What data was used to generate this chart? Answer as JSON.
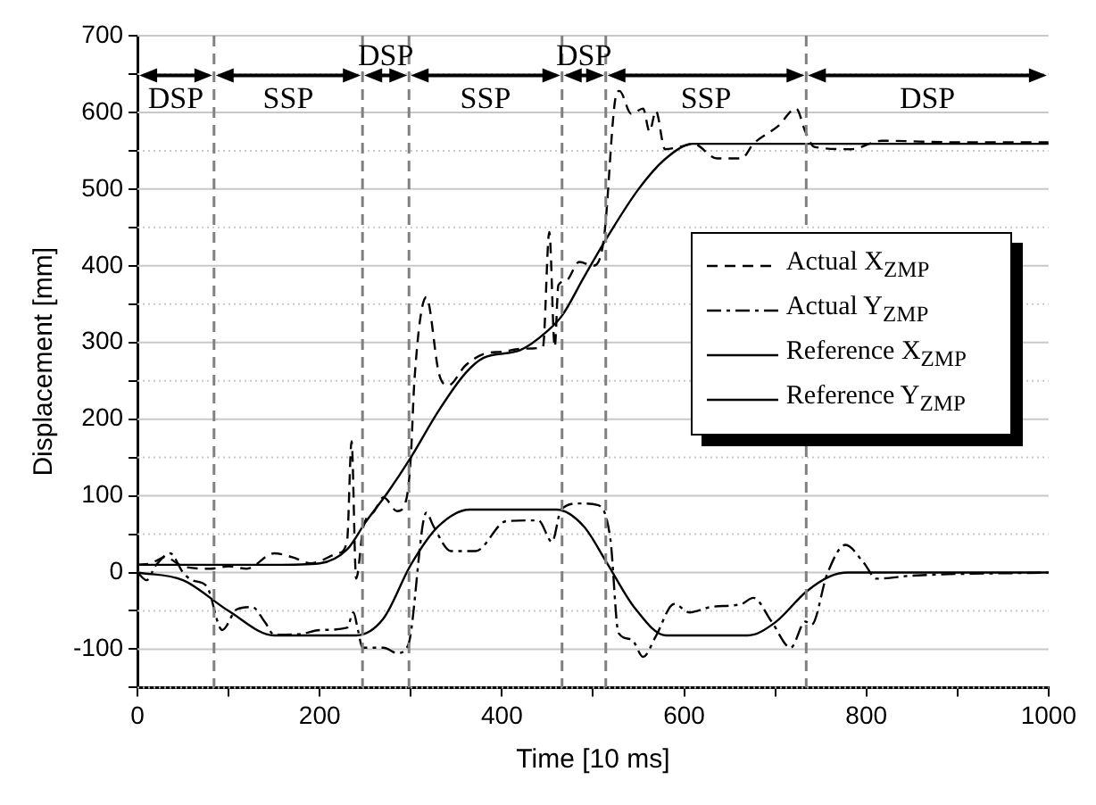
{
  "chart_data": {
    "type": "line",
    "xlabel": "Time [10 ms]",
    "ylabel": "Displacement [mm]",
    "xlim": [
      0,
      1000
    ],
    "xticks": [
      0,
      {
        "value": 100,
        "label": null
      },
      200,
      {
        "value": 300,
        "label": null
      },
      400,
      {
        "value": 500,
        "label": null
      },
      600,
      {
        "value": 700,
        "label": null
      },
      800,
      {
        "value": 900,
        "label": null
      },
      1000
    ],
    "ylim": [
      -150,
      700
    ],
    "yticks": [
      {
        "value": -150,
        "label": null
      },
      -100,
      {
        "value": -50,
        "label": null
      },
      0,
      {
        "value": 50,
        "label": null
      },
      100,
      {
        "value": 150,
        "label": null
      },
      200,
      {
        "value": 250,
        "label": null
      },
      300,
      {
        "value": 350,
        "label": null
      },
      400,
      {
        "value": 450,
        "label": null
      },
      500,
      {
        "value": 550,
        "label": null
      },
      600,
      {
        "value": 650,
        "label": null
      },
      700
    ],
    "grid": "y",
    "legend": "right",
    "marker": "none",
    "series": [
      {
        "name": "Actual X$_{ZMP}$",
        "color": "#000000",
        "line_style": "dashed",
        "x": [
          0,
          15,
          30,
          50,
          80,
          100,
          120,
          150,
          170,
          190,
          220,
          230,
          235,
          240,
          248,
          260,
          270,
          285,
          295,
          300,
          304,
          317,
          331,
          341,
          360,
          380,
          400,
          425,
          445,
          452,
          458,
          462,
          470,
          485,
          500,
          512,
          525,
          529,
          542,
          555,
          562,
          569,
          579,
          595,
          610,
          636,
          663,
          676,
          703,
          723,
          733,
          743,
          783,
          817,
          900,
          1000
        ],
        "values": [
          10,
          12,
          20,
          8,
          5,
          8,
          5,
          25,
          20,
          12,
          25,
          40,
          171,
          -8,
          60,
          80,
          98,
          80,
          95,
          150,
          251,
          359,
          259,
          244,
          270,
          285,
          288,
          292,
          294,
          444,
          294,
          375,
          380,
          405,
          400,
          436,
          621,
          628,
          598,
          605,
          575,
          602,
          552,
          555,
          559,
          540,
          540,
          559,
          582,
          605,
          575,
          555,
          552,
          563,
          561,
          561
        ]
      },
      {
        "name": "Actual Y$_{ZMP}$",
        "color": "#000000",
        "line_style": "dashdot",
        "x": [
          0,
          10,
          20,
          36,
          50,
          60,
          76,
          93,
          109,
          126,
          140,
          150,
          180,
          200,
          230,
          237,
          242,
          247,
          270,
          285,
          297,
          317,
          325,
          344,
          371,
          405,
          440,
          455,
          465,
          485,
          505,
          519,
          528,
          542,
          555,
          569,
          589,
          606,
          629,
          663,
          676,
          696,
          717,
          733,
          740,
          757,
          777,
          797,
          811,
          851,
          1000
        ],
        "values": [
          0,
          -10,
          9,
          25,
          0,
          -10,
          -18,
          -75,
          -48,
          -45,
          -65,
          -81,
          -80,
          -75,
          -72,
          -52,
          -75,
          -98,
          -98,
          -105,
          -95,
          78,
          60,
          28,
          28,
          67,
          68,
          40,
          82,
          90,
          88,
          44,
          -79,
          -87,
          -110,
          -83,
          -41,
          -52,
          -45,
          -41,
          -33,
          -64,
          -98,
          -64,
          -68,
          -2,
          36,
          13,
          -8,
          -4,
          0
        ]
      },
      {
        "name": "Reference X$_{ZMP}$",
        "color": "#000000",
        "line_style": "solid",
        "x": [
          0,
          150,
          200,
          230,
          250,
          275,
          300,
          330,
          360,
          380,
          420,
          450,
          466,
          490,
          515,
          550,
          580,
          610,
          1000
        ],
        "values": [
          10,
          10,
          12,
          30,
          65,
          105,
          150,
          210,
          260,
          280,
          290,
          315,
          335,
          385,
          436,
          500,
          540,
          559,
          559
        ]
      },
      {
        "name": "Reference Y$_{ZMP}$",
        "color": "#000000",
        "line_style": "solid",
        "x": [
          0,
          50,
          100,
          150,
          240,
          270,
          300,
          330,
          365,
          460,
          490,
          515,
          545,
          580,
          670,
          700,
          734,
          760,
          780,
          1000
        ],
        "values": [
          0,
          -10,
          -50,
          -82,
          -82,
          -60,
          10,
          60,
          82,
          82,
          60,
          13,
          -45,
          -82,
          -82,
          -65,
          -25,
          -5,
          0,
          0
        ]
      }
    ],
    "ref_lines": [
      {
        "axis": "x",
        "value": 84,
        "color": "#808080",
        "line_style": "dashed"
      },
      {
        "axis": "x",
        "value": 247,
        "color": "#808080",
        "line_style": "dashed"
      },
      {
        "axis": "x",
        "value": 298,
        "color": "#808080",
        "line_style": "dashed"
      },
      {
        "axis": "x",
        "value": 466,
        "color": "#808080",
        "line_style": "dashed"
      },
      {
        "axis": "x",
        "value": 514,
        "color": "#808080",
        "line_style": "dashed"
      },
      {
        "axis": "x",
        "value": 734,
        "color": "#808080",
        "line_style": "dashed"
      }
    ],
    "annotations": [
      "DSP",
      "SSP",
      "DSP",
      "SSP",
      "DSP",
      "SSP",
      "DSP"
    ]
  }
}
